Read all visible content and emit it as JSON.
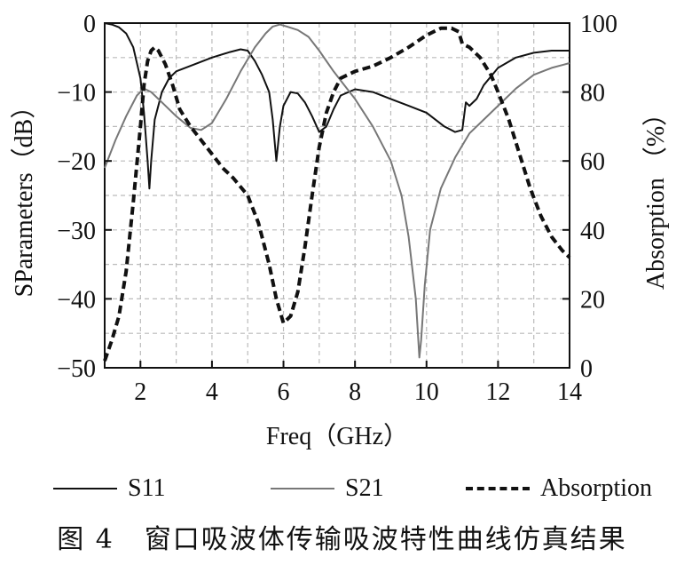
{
  "chart_data": {
    "type": "line",
    "xlabel": "Freq（GHz）",
    "ylabel_left": "SParameters（dB）",
    "ylabel_right": "Absorption （%）",
    "xlim": [
      1,
      14
    ],
    "ylim_left": [
      -50,
      0
    ],
    "ylim_right": [
      0,
      100
    ],
    "x_ticks": [
      2,
      4,
      6,
      8,
      10,
      12,
      14
    ],
    "y_left_ticks": [
      0,
      -10,
      -20,
      -30,
      -40,
      -50
    ],
    "y_right_ticks": [
      100,
      80,
      60,
      40,
      20,
      0
    ],
    "grid": true,
    "legend_position": "bottom",
    "series": [
      {
        "name": "S11",
        "axis": "left",
        "color": "#111111",
        "style": "solid",
        "x": [
          1.0,
          1.2,
          1.4,
          1.6,
          1.8,
          2.0,
          2.1,
          2.2,
          2.25,
          2.3,
          2.4,
          2.6,
          2.8,
          3.0,
          3.5,
          4.0,
          4.5,
          4.8,
          5.0,
          5.2,
          5.4,
          5.6,
          5.7,
          5.8,
          5.9,
          6.0,
          6.2,
          6.4,
          6.6,
          6.8,
          7.0,
          7.2,
          7.4,
          7.6,
          8.0,
          8.5,
          9.0,
          9.5,
          10.0,
          10.5,
          10.8,
          11.0,
          11.05,
          11.1,
          11.2,
          11.4,
          11.6,
          12.0,
          12.5,
          13.0,
          13.5,
          14.0
        ],
        "values": [
          0.0,
          -0.2,
          -0.6,
          -1.5,
          -3.5,
          -8.0,
          -13.0,
          -20.0,
          -24.0,
          -20.0,
          -14.0,
          -10.0,
          -8.0,
          -7.0,
          -6.0,
          -5.0,
          -4.2,
          -3.8,
          -4.0,
          -5.5,
          -7.5,
          -10.0,
          -14.0,
          -20.0,
          -15.0,
          -12.0,
          -10.0,
          -10.2,
          -11.5,
          -13.5,
          -15.8,
          -15.0,
          -12.5,
          -10.5,
          -9.6,
          -10.0,
          -11.0,
          -12.0,
          -13.0,
          -15.0,
          -15.8,
          -15.5,
          -13.5,
          -11.5,
          -12.0,
          -11.0,
          -9.0,
          -6.5,
          -5.0,
          -4.3,
          -4.0,
          -4.0
        ]
      },
      {
        "name": "S21",
        "axis": "left",
        "color": "#777777",
        "style": "solid",
        "x": [
          1.0,
          1.3,
          1.6,
          1.9,
          2.1,
          2.3,
          2.6,
          3.0,
          3.4,
          3.7,
          4.0,
          4.4,
          4.8,
          5.2,
          5.5,
          5.7,
          5.9,
          6.1,
          6.4,
          6.7,
          7.0,
          7.4,
          8.0,
          8.5,
          9.0,
          9.3,
          9.5,
          9.7,
          9.8,
          9.85,
          9.95,
          10.1,
          10.4,
          10.8,
          11.2,
          11.6,
          12.0,
          12.5,
          13.0,
          13.5,
          14.0
        ],
        "values": [
          -21.0,
          -17.0,
          -13.5,
          -10.5,
          -9.5,
          -10.0,
          -11.5,
          -13.5,
          -15.2,
          -15.5,
          -14.5,
          -11.0,
          -7.0,
          -3.5,
          -1.5,
          -0.5,
          -0.2,
          -0.5,
          -1.0,
          -2.0,
          -4.0,
          -7.0,
          -11.0,
          -15.0,
          -20.0,
          -25.0,
          -31.0,
          -40.0,
          -48.5,
          -46.0,
          -38.0,
          -30.0,
          -24.0,
          -19.5,
          -16.0,
          -14.0,
          -12.0,
          -9.5,
          -7.5,
          -6.5,
          -5.8
        ]
      },
      {
        "name": "Absorption",
        "axis": "right",
        "color": "#111111",
        "style": "dashed",
        "x": [
          1.0,
          1.2,
          1.4,
          1.6,
          1.8,
          2.0,
          2.1,
          2.2,
          2.3,
          2.4,
          2.5,
          2.7,
          2.9,
          3.1,
          3.4,
          3.7,
          4.0,
          4.3,
          4.6,
          5.0,
          5.3,
          5.6,
          5.8,
          6.0,
          6.2,
          6.4,
          6.6,
          6.8,
          7.0,
          7.2,
          7.4,
          7.6,
          8.0,
          8.5,
          9.0,
          9.5,
          10.0,
          10.4,
          10.7,
          10.9,
          11.0,
          11.2,
          11.5,
          11.8,
          12.0,
          12.3,
          12.6,
          12.9,
          13.2,
          13.5,
          13.8,
          14.0
        ],
        "values": [
          2.0,
          8.0,
          15.0,
          28.0,
          48.0,
          70.0,
          82.0,
          89.0,
          92.0,
          93.0,
          92.0,
          88.0,
          82.0,
          75.0,
          70.0,
          66.0,
          62.0,
          58.0,
          55.0,
          50.0,
          42.0,
          30.0,
          20.0,
          13.0,
          15.0,
          22.0,
          35.0,
          50.0,
          64.0,
          74.0,
          80.0,
          84.0,
          86.0,
          87.5,
          90.0,
          93.0,
          96.5,
          98.5,
          98.5,
          97.5,
          94.0,
          93.0,
          90.0,
          85.0,
          80.0,
          72.0,
          62.0,
          52.0,
          44.0,
          38.0,
          34.0,
          32.0
        ]
      }
    ]
  },
  "caption": {
    "figure_number": "图 4",
    "text": "窗口吸波体传输吸波特性曲线仿真结果"
  }
}
